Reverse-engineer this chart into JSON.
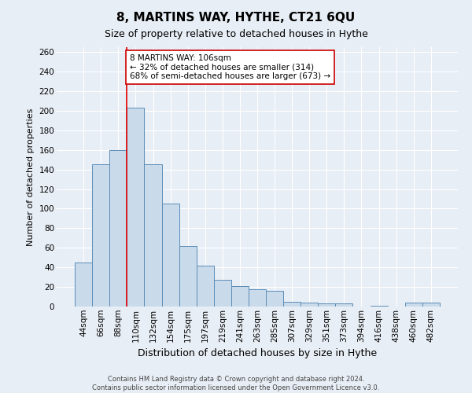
{
  "title": "8, MARTINS WAY, HYTHE, CT21 6QU",
  "subtitle": "Size of property relative to detached houses in Hythe",
  "xlabel": "Distribution of detached houses by size in Hythe",
  "ylabel": "Number of detached properties",
  "bar_labels": [
    "44sqm",
    "66sqm",
    "88sqm",
    "110sqm",
    "132sqm",
    "154sqm",
    "175sqm",
    "197sqm",
    "219sqm",
    "241sqm",
    "263sqm",
    "285sqm",
    "307sqm",
    "329sqm",
    "351sqm",
    "373sqm",
    "394sqm",
    "416sqm",
    "438sqm",
    "460sqm",
    "482sqm"
  ],
  "bar_heights": [
    45,
    145,
    160,
    203,
    145,
    105,
    62,
    42,
    27,
    21,
    18,
    16,
    5,
    4,
    3,
    3,
    0,
    1,
    0,
    4,
    4
  ],
  "bar_color": "#c9daeb",
  "bar_edge_color": "#5b8db8",
  "vline_x_index": 3,
  "vline_color": "#dd0000",
  "annotation_text": "8 MARTINS WAY: 106sqm\n← 32% of detached houses are smaller (314)\n68% of semi-detached houses are larger (673) →",
  "annotation_box_color": "white",
  "annotation_box_edge_color": "#cc0000",
  "ylim": [
    0,
    265
  ],
  "yticks": [
    0,
    20,
    40,
    60,
    80,
    100,
    120,
    140,
    160,
    180,
    200,
    220,
    240,
    260
  ],
  "footer_line1": "Contains HM Land Registry data © Crown copyright and database right 2024.",
  "footer_line2": "Contains public sector information licensed under the Open Government Licence v3.0.",
  "bg_color": "#e8eef5",
  "plot_bg_color": "#e8eef5",
  "grid_color": "#ffffff",
  "title_fontsize": 11,
  "subtitle_fontsize": 9,
  "xlabel_fontsize": 9,
  "ylabel_fontsize": 8,
  "tick_fontsize": 7.5,
  "footer_fontsize": 6
}
